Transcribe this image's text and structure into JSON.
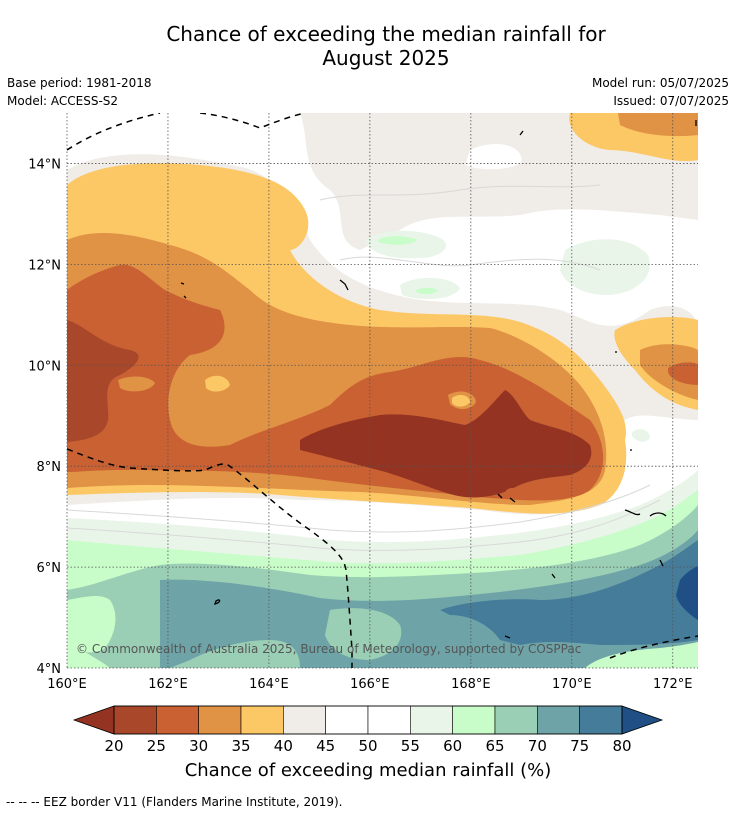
{
  "header": {
    "title_line1": "Chance of exceeding the median rainfall for",
    "title_line2": "August 2025",
    "base_period": "Base period: 1981-2018",
    "model": "Model: ACCESS-S2",
    "model_run": "Model run: 05/07/2025",
    "issued": "Issued: 07/07/2025"
  },
  "copyright": "© Commonwealth of Australia 2025, Bureau of Meteorology, supported by COSPPac",
  "footnote": "--  --  -- EEZ border V11 (Flanders Marine Institute, 2019).",
  "colorbar": {
    "label": "Chance of exceeding median rainfall (%)",
    "ticks": [
      "20",
      "25",
      "30",
      "35",
      "40",
      "45",
      "50",
      "55",
      "60",
      "65",
      "70",
      "75",
      "80"
    ],
    "colors": [
      "#a8472a",
      "#c96132",
      "#e09245",
      "#fcc765",
      "#f0ece7",
      "#ffffff",
      "#ffffff",
      "#eaf5ea",
      "#c8fcc8",
      "#9bcfb5",
      "#6ea4a8",
      "#447c9a"
    ],
    "under_color": "#943322",
    "over_color": "#1f4f85"
  },
  "chart_data": {
    "type": "heatmap",
    "title": "Chance of exceeding the median rainfall for August 2025",
    "xlabel": "",
    "ylabel": "",
    "x_ticks": [
      "160°E",
      "162°E",
      "164°E",
      "166°E",
      "168°E",
      "170°E",
      "172°E"
    ],
    "y_ticks": [
      "4°N",
      "6°N",
      "8°N",
      "10°N",
      "12°N",
      "14°N"
    ],
    "xlim": [
      160,
      172.5
    ],
    "ylim": [
      4,
      15
    ],
    "grid": true,
    "units": "%",
    "levels": [
      20,
      25,
      30,
      35,
      40,
      45,
      50,
      55,
      60,
      65,
      70,
      75,
      80
    ],
    "regions": [
      {
        "lat_band": "14-15°N",
        "lon_range": [
          160,
          172.5
        ],
        "value": 45,
        "note": "mostly 40-55%, 30-40% near 170-172°E"
      },
      {
        "lat_band": "12-14°N",
        "lon_range": [
          160,
          165
        ],
        "value": 35
      },
      {
        "lat_band": "11-13°N",
        "lon_range": [
          166,
          172.5
        ],
        "value": 55
      },
      {
        "lat_band": "9-11°N",
        "lon_range": [
          160,
          164
        ],
        "value": 25
      },
      {
        "lat_band": "8-9.5°N",
        "lon_range": [
          166,
          170.5
        ],
        "value": 20
      },
      {
        "lat_band": "7-8°N",
        "lon_range": [
          160,
          171
        ],
        "value": 35
      },
      {
        "lat_band": "6-7°N",
        "lon_range": [
          160,
          172.5
        ],
        "value": 55
      },
      {
        "lat_band": "4-6°N",
        "lon_range": [
          160,
          172.5
        ],
        "value": 70
      },
      {
        "lat_band": "4.5-6°N",
        "lon_range": [
          170.5,
          172.5
        ],
        "value": 80
      }
    ]
  }
}
